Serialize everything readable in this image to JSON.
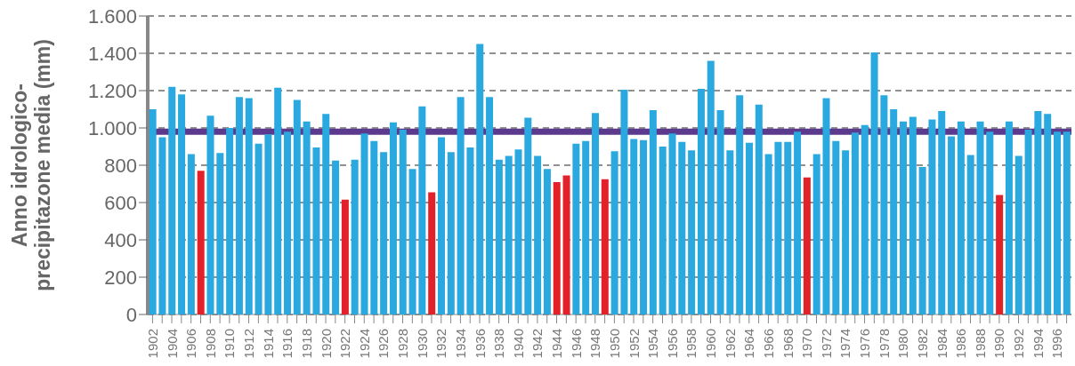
{
  "chart_data": {
    "type": "bar",
    "ylabel": "Anno idrologico-\nprecipitazone media (mm)",
    "categories": [
      "1902",
      null,
      "1904",
      null,
      "1906",
      null,
      "1908",
      null,
      "1910",
      null,
      "1912",
      null,
      "1914",
      null,
      "1916",
      null,
      "1918",
      null,
      "1920",
      null,
      "1922",
      null,
      "1924",
      null,
      "1926",
      null,
      "1928",
      null,
      "1930",
      null,
      "1932",
      null,
      "1934",
      null,
      "1936",
      null,
      "1938",
      null,
      "1940",
      null,
      "1942",
      null,
      "1944",
      null,
      "1946",
      null,
      "1948",
      null,
      "1950",
      null,
      "1952",
      null,
      "1954",
      null,
      "1956",
      null,
      "1958",
      null,
      "1960",
      null,
      "1962",
      null,
      "1964",
      null,
      "1966",
      null,
      "1968",
      null,
      "1970",
      null,
      "1972",
      null,
      "1974",
      null,
      "1976",
      null,
      "1978",
      null,
      "1980",
      null,
      "1982",
      null,
      "1984",
      null,
      "1986",
      null,
      "1988",
      null,
      "1990",
      null,
      "1992",
      null,
      "1994",
      null,
      "1996",
      null
    ],
    "values": [
      1100,
      950,
      1220,
      1180,
      860,
      770,
      1065,
      865,
      1000,
      1165,
      1160,
      915,
      965,
      1215,
      980,
      1150,
      1035,
      895,
      1075,
      825,
      615,
      830,
      970,
      930,
      870,
      1030,
      990,
      780,
      1115,
      655,
      950,
      870,
      1165,
      895,
      1450,
      1165,
      830,
      850,
      885,
      1055,
      850,
      780,
      710,
      745,
      915,
      930,
      1080,
      725,
      875,
      1205,
      940,
      935,
      1095,
      900,
      970,
      925,
      880,
      1210,
      1360,
      1095,
      880,
      1175,
      920,
      1125,
      860,
      925,
      925,
      980,
      735,
      860,
      1160,
      930,
      880,
      975,
      1015,
      1405,
      1175,
      1100,
      1035,
      1060,
      790,
      1045,
      1090,
      955,
      1035,
      855,
      1035,
      980,
      640,
      1035,
      850,
      990,
      1090,
      1075,
      980,
      980
    ],
    "colors": [
      "#29a9e0",
      "#29a9e0",
      "#29a9e0",
      "#29a9e0",
      "#29a9e0",
      "#e3212a",
      "#29a9e0",
      "#29a9e0",
      "#29a9e0",
      "#29a9e0",
      "#29a9e0",
      "#29a9e0",
      "#29a9e0",
      "#29a9e0",
      "#29a9e0",
      "#29a9e0",
      "#29a9e0",
      "#29a9e0",
      "#29a9e0",
      "#29a9e0",
      "#e3212a",
      "#29a9e0",
      "#29a9e0",
      "#29a9e0",
      "#29a9e0",
      "#29a9e0",
      "#29a9e0",
      "#29a9e0",
      "#29a9e0",
      "#e3212a",
      "#29a9e0",
      "#29a9e0",
      "#29a9e0",
      "#29a9e0",
      "#29a9e0",
      "#29a9e0",
      "#29a9e0",
      "#29a9e0",
      "#29a9e0",
      "#29a9e0",
      "#29a9e0",
      "#29a9e0",
      "#e3212a",
      "#e3212a",
      "#29a9e0",
      "#29a9e0",
      "#29a9e0",
      "#e3212a",
      "#29a9e0",
      "#29a9e0",
      "#29a9e0",
      "#29a9e0",
      "#29a9e0",
      "#29a9e0",
      "#29a9e0",
      "#29a9e0",
      "#29a9e0",
      "#29a9e0",
      "#29a9e0",
      "#29a9e0",
      "#29a9e0",
      "#29a9e0",
      "#29a9e0",
      "#29a9e0",
      "#29a9e0",
      "#29a9e0",
      "#29a9e0",
      "#29a9e0",
      "#e3212a",
      "#29a9e0",
      "#29a9e0",
      "#29a9e0",
      "#29a9e0",
      "#29a9e0",
      "#29a9e0",
      "#29a9e0",
      "#29a9e0",
      "#29a9e0",
      "#29a9e0",
      "#29a9e0",
      "#29a9e0",
      "#29a9e0",
      "#29a9e0",
      "#29a9e0",
      "#29a9e0",
      "#29a9e0",
      "#29a9e0",
      "#29a9e0",
      "#e3212a",
      "#29a9e0",
      "#29a9e0",
      "#29a9e0",
      "#29a9e0",
      "#29a9e0",
      "#29a9e0",
      "#29a9e0"
    ],
    "ylim": [
      0,
      1600
    ],
    "yticks": [
      0,
      200,
      400,
      600,
      800,
      {
        "value": 1000,
        "label": "1.000"
      },
      {
        "value": 1200,
        "label": "1.200"
      },
      {
        "value": 1400,
        "label": "1.400"
      },
      {
        "value": 1600,
        "label": "1.600"
      }
    ],
    "grid": "y",
    "ref_lines": [
      {
        "axis": "y",
        "value": 980,
        "color": "#5b3a8e"
      }
    ]
  }
}
